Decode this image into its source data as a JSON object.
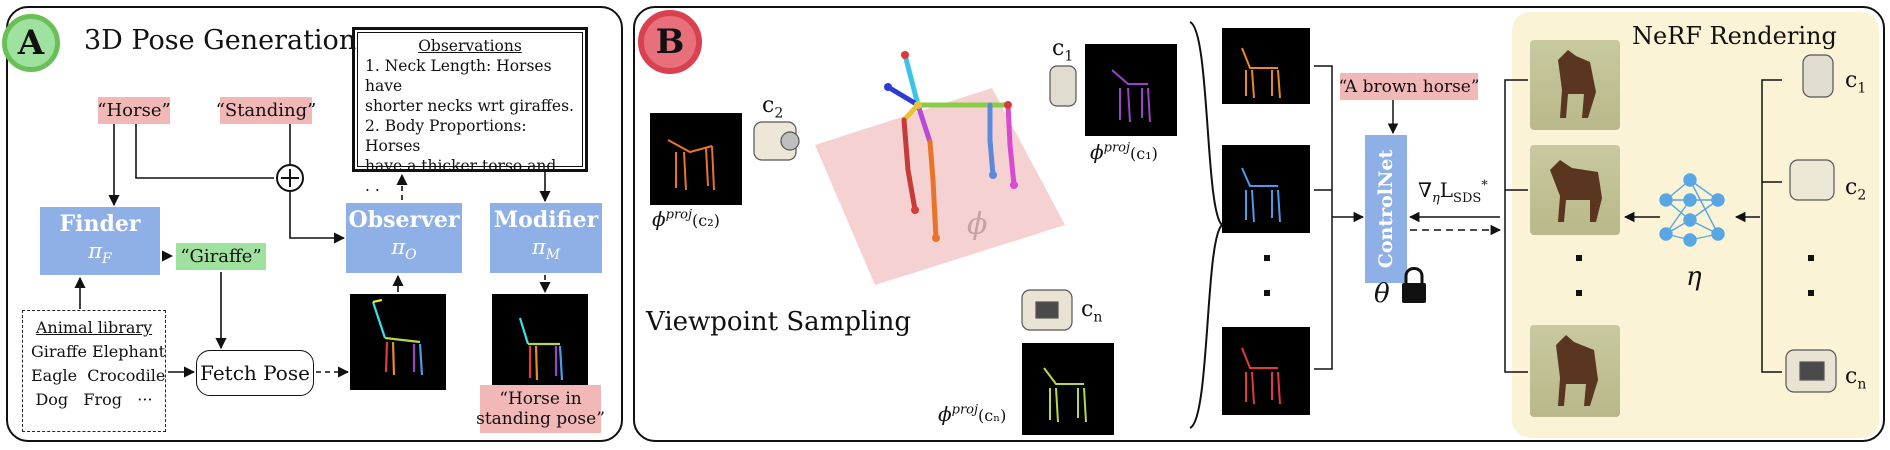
{
  "panel_a": {
    "badge": "A",
    "title": "3D Pose Generation",
    "prompt_animal": "“Horse”",
    "prompt_pose": "“Standing”",
    "finder": {
      "name": "Finder",
      "symbol": "πF",
      "symbol_main": "π",
      "symbol_sub": "F"
    },
    "observer": {
      "name": "Observer",
      "symbol_main": "π",
      "symbol_sub": "O"
    },
    "modifier": {
      "name": "Modifier",
      "symbol_main": "π",
      "symbol_sub": "M"
    },
    "found_animal": "“Giraffe”",
    "observations": {
      "title": "Observations",
      "line1": "1. Neck Length: Horses have",
      "line2": "shorter necks wrt giraffes.",
      "line3": "2. Body Proportions: Horses",
      "line4": "have a thicker torso and  . . .",
      "line5": ". . ."
    },
    "library": {
      "title": "Animal library",
      "row1": "Giraffe Elephant",
      "row2": "Eagle  Crocodile",
      "row3": "Dog   Frog   ···"
    },
    "fetch_pose": "Fetch Pose",
    "result_line1": "“Horse in",
    "result_line2": "standing pose”"
  },
  "panel_b": {
    "badge": "B",
    "viewpoint_sampling": "Viewpoint Sampling",
    "phi": "ϕ",
    "phi_proj": "ϕ",
    "proj_sup": "proj",
    "cam_1": "c",
    "cam_1_sub": "1",
    "cam_2": "c",
    "cam_2_sub": "2",
    "cam_n": "c",
    "cam_n_sub": "n",
    "proj_c1": "(c₁)",
    "proj_c2": "(c₂)",
    "proj_cn": "(cₙ)",
    "text_prompt": "“A brown horse”",
    "controlnet": "ControlNet",
    "theta": "θ",
    "gradient_label": "∇",
    "gradient_sub": "η",
    "gradient_loss": "L",
    "gradient_loss_sub": "SDS",
    "gradient_star": "*",
    "nerf_title": "NeRF Rendering",
    "eta": "η",
    "dots": "·"
  },
  "colors": {
    "badge_a_ring": "#6bbf59",
    "badge_b_ring": "#d94050",
    "pink_tag": "#f2b8b8",
    "green_tag": "#9fe29f",
    "blue_box": "#8fb0e6",
    "nerf_bg": "#fbf3d6",
    "plane": "#f3c6c6",
    "network": "#58a6e3"
  }
}
